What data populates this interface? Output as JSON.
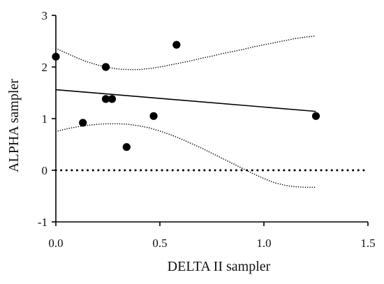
{
  "chart_data": {
    "type": "scatter",
    "xlabel": "DELTA II sampler",
    "ylabel": "ALPHA sampler",
    "xlim": [
      0,
      1.5
    ],
    "ylim": [
      -1,
      3
    ],
    "xticks": [
      0,
      0.5,
      1,
      1.5
    ],
    "xtick_labels": [
      "0.0",
      "0.5",
      "1.0",
      "1.5"
    ],
    "yticks": [
      -1,
      0,
      1,
      2,
      3
    ],
    "ytick_labels": [
      "-1",
      "0",
      "1",
      "2",
      "3"
    ],
    "points": [
      {
        "x": 0.0,
        "y": 2.2
      },
      {
        "x": 0.24,
        "y": 2.0
      },
      {
        "x": 0.58,
        "y": 2.43
      },
      {
        "x": 0.24,
        "y": 1.38
      },
      {
        "x": 0.27,
        "y": 1.38
      },
      {
        "x": 0.13,
        "y": 0.92
      },
      {
        "x": 0.47,
        "y": 1.05
      },
      {
        "x": 0.34,
        "y": 0.45
      },
      {
        "x": 1.25,
        "y": 1.05
      }
    ],
    "regression_line": {
      "x": [
        0,
        1.25
      ],
      "y": [
        1.56,
        1.14
      ]
    },
    "confidence_band_upper": {
      "x": [
        0,
        0.05,
        0.1,
        0.15,
        0.2,
        0.25,
        0.3,
        0.35,
        0.4,
        0.45,
        0.5,
        0.55,
        0.6,
        0.65,
        0.7,
        0.75,
        0.8,
        0.85,
        0.9,
        0.95,
        1.0,
        1.05,
        1.1,
        1.15,
        1.2,
        1.25
      ],
      "y": [
        2.36,
        2.27,
        2.18,
        2.1,
        2.04,
        1.99,
        1.96,
        1.95,
        1.95,
        1.97,
        2.0,
        2.04,
        2.08,
        2.12,
        2.17,
        2.21,
        2.26,
        2.3,
        2.34,
        2.39,
        2.43,
        2.47,
        2.51,
        2.55,
        2.58,
        2.6
      ]
    },
    "confidence_band_lower": {
      "x": [
        0,
        0.05,
        0.1,
        0.15,
        0.2,
        0.25,
        0.3,
        0.35,
        0.4,
        0.45,
        0.5,
        0.55,
        0.6,
        0.65,
        0.7,
        0.75,
        0.8,
        0.85,
        0.9,
        0.95,
        1.0,
        1.05,
        1.1,
        1.15,
        1.2,
        1.25
      ],
      "y": [
        0.75,
        0.8,
        0.84,
        0.87,
        0.89,
        0.9,
        0.9,
        0.89,
        0.86,
        0.82,
        0.76,
        0.69,
        0.61,
        0.52,
        0.43,
        0.33,
        0.23,
        0.13,
        0.03,
        -0.07,
        -0.16,
        -0.24,
        -0.29,
        -0.32,
        -0.33,
        -0.33
      ]
    },
    "reference_line": {
      "y": 0,
      "style": "dotted"
    },
    "grid": false,
    "legend": false,
    "colors": {
      "points": "#000000",
      "lines": "#000000"
    }
  }
}
